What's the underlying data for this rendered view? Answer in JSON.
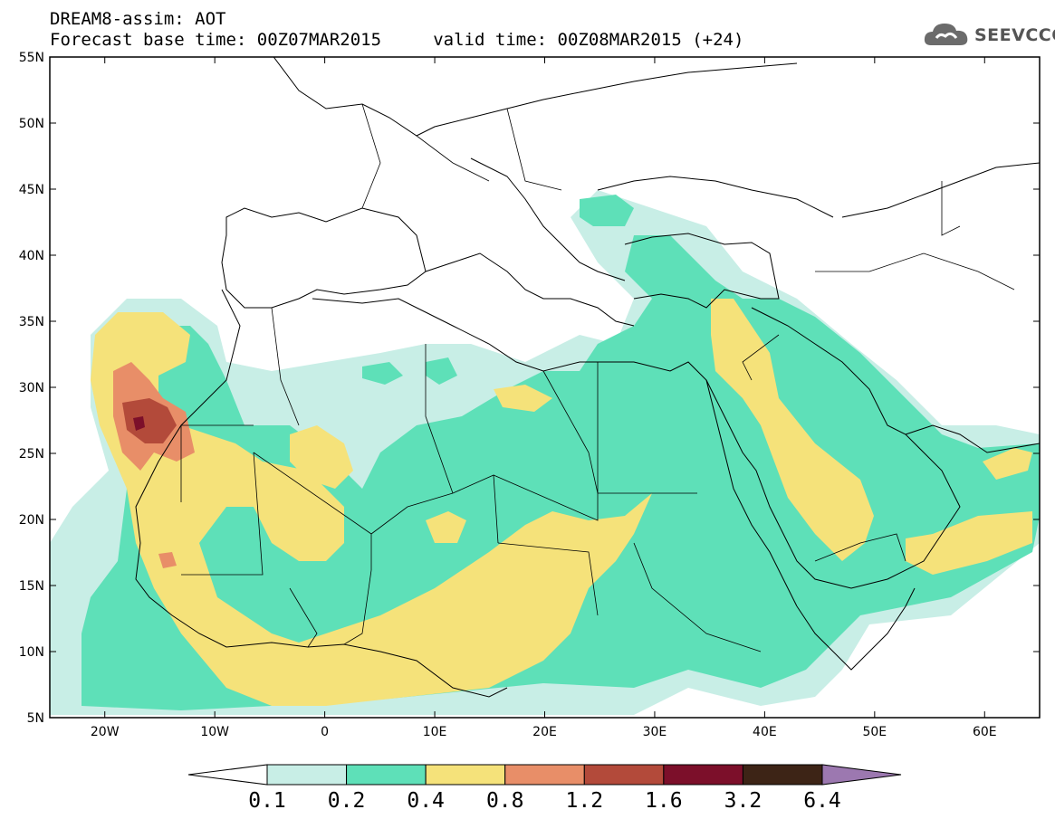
{
  "header": {
    "line1": "DREAM8-assim: AOT",
    "line2": "Forecast base time: 00Z07MAR2015     valid time: 00Z08MAR2015 (+24)"
  },
  "logo": {
    "text": "SEEVCCC",
    "icon": "cloud-icon"
  },
  "map": {
    "lon_range": [
      -25,
      65
    ],
    "lat_range": [
      5,
      55
    ],
    "lat_ticks": [
      "5N",
      "10N",
      "15N",
      "20N",
      "25N",
      "30N",
      "35N",
      "40N",
      "45N",
      "50N",
      "55N"
    ],
    "lon_ticks": [
      "20W",
      "10W",
      "0",
      "10E",
      "20E",
      "30E",
      "40E",
      "50E",
      "60E"
    ]
  },
  "colorbar": {
    "labels": [
      "0.1",
      "0.2",
      "0.4",
      "0.8",
      "1.2",
      "1.6",
      "3.2",
      "6.4"
    ],
    "colors": [
      "#ffffff",
      "#c8eee6",
      "#5ee0b8",
      "#f5e27a",
      "#e88e68",
      "#b34a3a",
      "#7c0f2a",
      "#3d2416",
      "#9c78b0"
    ]
  }
}
